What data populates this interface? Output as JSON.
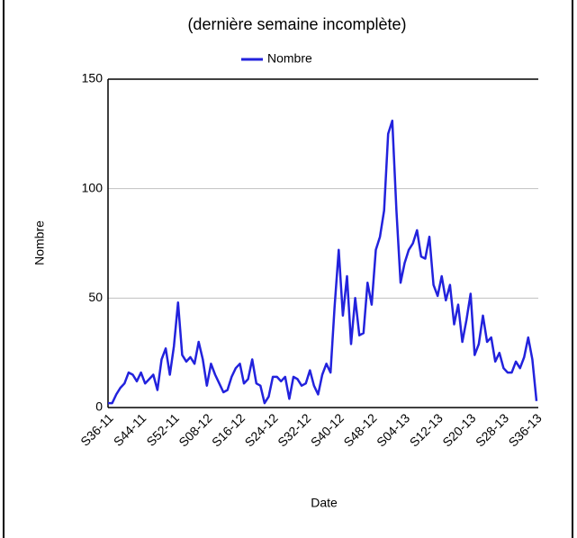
{
  "chart_data": {
    "type": "line",
    "subtitle": "(dernière semaine incomplète)",
    "x_label": "Date",
    "y_label": "Nombre",
    "categories": [
      "S36-11",
      null,
      null,
      null,
      null,
      null,
      null,
      null,
      "S44-11",
      null,
      null,
      null,
      null,
      null,
      null,
      null,
      "S52-11",
      null,
      null,
      null,
      null,
      null,
      null,
      null,
      "S08-12",
      null,
      null,
      null,
      null,
      null,
      null,
      null,
      "S16-12",
      null,
      null,
      null,
      null,
      null,
      null,
      null,
      "S24-12",
      null,
      null,
      null,
      null,
      null,
      null,
      null,
      "S32-12",
      null,
      null,
      null,
      null,
      null,
      null,
      null,
      "S40-12",
      null,
      null,
      null,
      null,
      null,
      null,
      null,
      "S48-12",
      null,
      null,
      null,
      null,
      null,
      null,
      null,
      "S04-13",
      null,
      null,
      null,
      null,
      null,
      null,
      null,
      "S12-13",
      null,
      null,
      null,
      null,
      null,
      null,
      null,
      "S20-13",
      null,
      null,
      null,
      null,
      null,
      null,
      null,
      "S28-13",
      null,
      null,
      null,
      null,
      null,
      null,
      null,
      "S36-13"
    ],
    "series": [
      {
        "name": "Nombre",
        "color": "#2222dd",
        "values": [
          2,
          2,
          6,
          9,
          11,
          16,
          15,
          12,
          16,
          11,
          13,
          15,
          8,
          22,
          27,
          15,
          28,
          48,
          24,
          21,
          23,
          20,
          30,
          22,
          10,
          20,
          15,
          11,
          7,
          8,
          14,
          18,
          20,
          11,
          13,
          22,
          11,
          10,
          2,
          5,
          14,
          14,
          12,
          14,
          4,
          14,
          13,
          10,
          11,
          17,
          10,
          6,
          15,
          20,
          16,
          46,
          72,
          42,
          60,
          29,
          50,
          33,
          34,
          57,
          47,
          72,
          78,
          90,
          125,
          131,
          90,
          57,
          66,
          72,
          75,
          81,
          69,
          68,
          78,
          56,
          51,
          60,
          49,
          56,
          38,
          47,
          30,
          40,
          52,
          24,
          29,
          42,
          30,
          32,
          21,
          25,
          18,
          16,
          16,
          21,
          18,
          23,
          32,
          22,
          3
        ]
      }
    ],
    "ylim": [
      0,
      150
    ],
    "yticks": [
      0,
      50,
      100,
      150
    ],
    "grid": true,
    "legend": "top"
  }
}
